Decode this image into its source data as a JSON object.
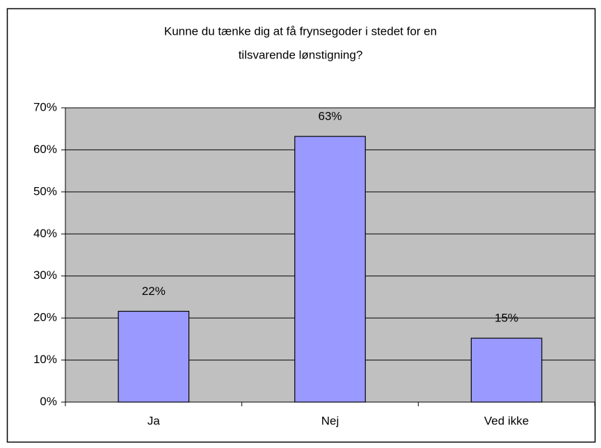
{
  "chart_data": {
    "type": "bar",
    "title": [
      "Kunne du tænke dig at få frynsegoder i stedet for en",
      "tilsvarende lønstigning?"
    ],
    "categories": [
      "Ja",
      "Nej",
      "Ved ikke"
    ],
    "values": [
      21.6,
      63.2,
      15.2
    ],
    "value_labels": [
      "22%",
      "63%",
      "15%"
    ],
    "color": "#9999ff",
    "plot_background": "#c0c0c0",
    "ylim": [
      0,
      70
    ],
    "yticks": [
      {
        "value": 0,
        "label": "0%"
      },
      {
        "value": 10,
        "label": "10%"
      },
      {
        "value": 20,
        "label": "20%"
      },
      {
        "value": 30,
        "label": "30%"
      },
      {
        "value": 40,
        "label": "40%"
      },
      {
        "value": 50,
        "label": "50%"
      },
      {
        "value": 60,
        "label": "60%"
      },
      {
        "value": 70,
        "label": "70%"
      }
    ],
    "grid": true
  }
}
